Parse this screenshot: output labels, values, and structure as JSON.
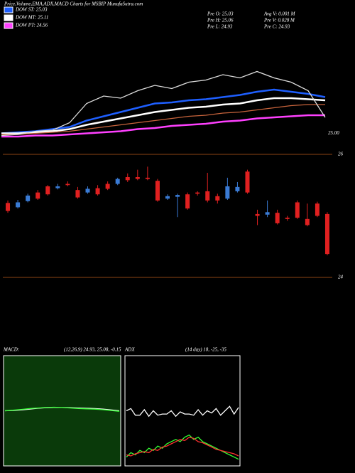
{
  "chart_data": [
    {
      "type": "line",
      "title": "Price,Volume,EMA,ADX,MACD Charts for MSBIP MunafaSutra.com",
      "annotations": [
        "Pre  O: 25.03",
        "Avg V: 0.001 M",
        "Pre  H: 25.06",
        "Pre  V: 0.028 M",
        "Pre  L: 24.93",
        "Pre  C: 24.93"
      ],
      "ylim": [
        24.85,
        25.85
      ],
      "yticks": [
        {
          "value": 25,
          "label": "25.00"
        }
      ],
      "grid": false,
      "series": [
        {
          "name": "DOW ST: 25.03",
          "color": "#1e5fff",
          "values": [
            25.0,
            25.01,
            25.02,
            25.04,
            25.06,
            25.12,
            25.16,
            25.2,
            25.24,
            25.28,
            25.29,
            25.31,
            25.32,
            25.34,
            25.36,
            25.39,
            25.41,
            25.39,
            25.37,
            25.34
          ]
        },
        {
          "name": "DOW MT: 25.11",
          "color": "#ffffff",
          "values": [
            25.0,
            25.0,
            25.01,
            25.02,
            25.04,
            25.08,
            25.11,
            25.14,
            25.17,
            25.2,
            25.22,
            25.24,
            25.25,
            25.27,
            25.28,
            25.31,
            25.33,
            25.33,
            25.32,
            25.31
          ]
        },
        {
          "name": "DOW PT: 24.56",
          "color": "#ff40ff",
          "values": [
            24.97,
            24.97,
            24.98,
            24.98,
            24.99,
            25.0,
            25.01,
            25.02,
            25.04,
            25.05,
            25.07,
            25.08,
            25.09,
            25.11,
            25.12,
            25.14,
            25.15,
            25.16,
            25.17,
            25.17
          ]
        },
        {
          "color": "#c8643c",
          "values": [
            24.99,
            24.99,
            25.0,
            25.01,
            25.02,
            25.04,
            25.06,
            25.08,
            25.1,
            25.12,
            25.14,
            25.16,
            25.17,
            25.19,
            25.2,
            25.22,
            25.24,
            25.26,
            25.27,
            25.27
          ]
        },
        {
          "color": "#dddddd",
          "values": [
            24.98,
            24.99,
            25.02,
            25.03,
            25.1,
            25.28,
            25.35,
            25.33,
            25.4,
            25.45,
            25.42,
            25.48,
            25.5,
            25.55,
            25.52,
            25.58,
            25.52,
            25.48,
            25.4,
            25.15
          ]
        }
      ]
    },
    {
      "type": "candlestick",
      "ylim": [
        24,
        26
      ],
      "yticks": [
        24,
        26
      ],
      "grid": true,
      "grid_color": "#8b4513",
      "up_color": "#3a7bd5",
      "down_color": "#e02020",
      "open": [
        25.21,
        25.14,
        25.24,
        25.38,
        25.48,
        25.45,
        25.52,
        25.42,
        25.38,
        25.45,
        25.52,
        25.52,
        25.63,
        25.63,
        25.62,
        25.57,
        25.28,
        25.31,
        25.35,
        25.38,
        25.4,
        25.32,
        25.28,
        25.4,
        25.72,
        25.03,
        25.02,
        25.05,
        24.97,
        25.22,
        24.95,
        25.2,
        25.03
      ],
      "high": [
        25.25,
        25.26,
        25.36,
        25.42,
        25.5,
        25.52,
        25.56,
        25.47,
        25.48,
        25.5,
        25.56,
        25.62,
        25.69,
        25.75,
        25.8,
        25.6,
        25.35,
        25.36,
        25.38,
        25.4,
        25.7,
        25.36,
        25.62,
        25.55,
        25.75,
        25.1,
        25.25,
        25.1,
        25.0,
        25.25,
        25.2,
        25.23,
        25.06
      ],
      "low": [
        25.05,
        25.12,
        25.22,
        25.26,
        25.33,
        25.43,
        25.48,
        25.28,
        25.36,
        25.33,
        25.42,
        25.5,
        25.55,
        25.58,
        25.58,
        25.23,
        25.26,
        24.98,
        25.1,
        25.33,
        25.22,
        25.2,
        25.26,
        25.38,
        25.36,
        24.85,
        24.98,
        24.86,
        24.92,
        24.95,
        24.83,
        24.98,
        24.36
      ],
      "close": [
        25.08,
        25.22,
        25.33,
        25.28,
        25.35,
        25.48,
        25.5,
        25.3,
        25.44,
        25.35,
        25.44,
        25.6,
        25.58,
        25.6,
        25.6,
        25.25,
        25.32,
        25.34,
        25.12,
        25.36,
        25.25,
        25.25,
        25.48,
        25.47,
        25.38,
        25.0,
        25.06,
        24.88,
        24.95,
        24.97,
        24.85,
        25.0,
        24.38
      ]
    },
    {
      "type": "line",
      "title": "MACD:",
      "subtitle": "(12,26,9) 24.93, 25.08, -0.15",
      "ylim": [
        -2,
        2
      ],
      "background": "#0a3a0a",
      "series": [
        {
          "color": "#ffffff",
          "values": [
            0.0,
            0.01,
            0.03,
            0.06,
            0.09,
            0.11,
            0.12,
            0.12,
            0.11,
            0.1,
            0.09,
            0.08,
            0.06,
            0.03,
            0.0
          ]
        },
        {
          "color": "#33ff33",
          "values": [
            0.0,
            0.02,
            0.05,
            0.08,
            0.1,
            0.12,
            0.13,
            0.12,
            0.1,
            0.08,
            0.07,
            0.06,
            0.04,
            0.01,
            -0.02
          ]
        }
      ]
    },
    {
      "type": "line",
      "title": "ADX",
      "subtitle": "(14 day) 18, -25, -35",
      "ylim": [
        0,
        100
      ],
      "series": [
        {
          "color": "#ffffff",
          "values": [
            50,
            52,
            46,
            46,
            51,
            45,
            50,
            46,
            47,
            47,
            50,
            45,
            49,
            47,
            47,
            46,
            51,
            46,
            50,
            48,
            52,
            46,
            50,
            54,
            47,
            53
          ]
        },
        {
          "color": "#33ff33",
          "values": [
            8,
            12,
            10,
            14,
            12,
            16,
            14,
            18,
            16,
            20,
            22,
            24,
            22,
            26,
            28,
            24,
            26,
            22,
            20,
            18,
            16,
            14,
            12,
            10,
            8,
            6
          ]
        },
        {
          "color": "#ff3030",
          "values": [
            10,
            9,
            11,
            12,
            13,
            12,
            15,
            14,
            17,
            18,
            20,
            22,
            24,
            23,
            26,
            25,
            22,
            21,
            19,
            17,
            15,
            14,
            13,
            12,
            11,
            9
          ]
        }
      ]
    }
  ]
}
